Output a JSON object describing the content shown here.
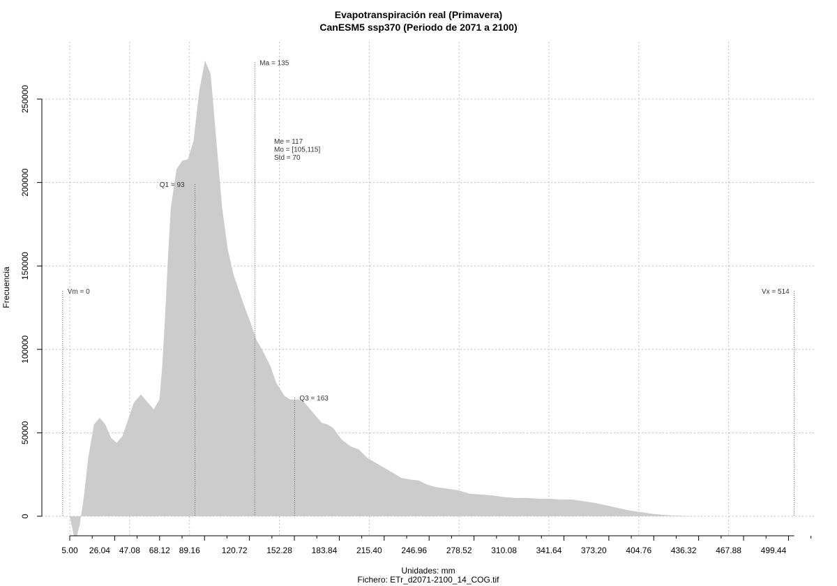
{
  "chart_data": {
    "type": "area",
    "title": "Evapotranspiración real (Primavera)",
    "subtitle": "CanESM5 ssp370 (Periodo de 2071 a 2100)",
    "xlabel": "Unidades: mm",
    "ylabel": "Frecuencia",
    "footer": "Fichero: ETr_d2071-2100_14_COG.tif",
    "xlim": [
      -5,
      520
    ],
    "ylim": [
      -10000,
      275000
    ],
    "grid": true,
    "x_tick_labels": [
      "5.00",
      "26.04",
      "47.08",
      "68.12",
      "89.16",
      "120.72",
      "152.28",
      "183.84",
      "215.40",
      "246.96",
      "278.52",
      "310.08",
      "341.64",
      "373.20",
      "404.76",
      "436.32",
      "467.88",
      "499.44"
    ],
    "x_tick_values": [
      5.0,
      26.04,
      47.08,
      68.12,
      89.16,
      120.72,
      152.28,
      183.84,
      215.4,
      246.96,
      278.52,
      310.08,
      341.64,
      373.2,
      404.76,
      436.32,
      467.88,
      499.44
    ],
    "y_ticks": [
      0,
      50000,
      100000,
      150000,
      200000,
      250000
    ],
    "y_tick_labels": [
      "0",
      "50000",
      "100000",
      "150000",
      "200000",
      "250000"
    ],
    "density_x": [
      5,
      8,
      10,
      12,
      15,
      18,
      22,
      26,
      30,
      34,
      38,
      42,
      46,
      50,
      55,
      60,
      64,
      68,
      70,
      72,
      74,
      76,
      80,
      84,
      88,
      92,
      96,
      100,
      104,
      108,
      112,
      116,
      120,
      124,
      128,
      132,
      136,
      140,
      146,
      150,
      156,
      160,
      166,
      170,
      176,
      182,
      186,
      190,
      196,
      202,
      208,
      214,
      220,
      226,
      232,
      238,
      244,
      250,
      256,
      262,
      270,
      278,
      286,
      294,
      302,
      310,
      318,
      326,
      334,
      342,
      350,
      358,
      366,
      374,
      382,
      390,
      398,
      406,
      414,
      422,
      430,
      440,
      450,
      470,
      490,
      514
    ],
    "density_y": [
      0,
      -12000,
      -12000,
      -5000,
      12000,
      35000,
      55000,
      59000,
      55000,
      47000,
      44000,
      48000,
      58000,
      68000,
      73000,
      68000,
      64000,
      70000,
      90000,
      120000,
      155000,
      185000,
      208000,
      213000,
      214000,
      225000,
      255000,
      273000,
      265000,
      225000,
      185000,
      160000,
      145000,
      135000,
      125000,
      116000,
      106000,
      100000,
      90000,
      80000,
      72000,
      70000,
      70000,
      68000,
      62000,
      56000,
      55000,
      53000,
      46000,
      42000,
      40000,
      35000,
      32000,
      29000,
      26000,
      23000,
      22000,
      21500,
      19000,
      17500,
      16500,
      15500,
      13500,
      13000,
      12500,
      11500,
      11000,
      11000,
      10500,
      10500,
      10000,
      10000,
      9000,
      8000,
      6500,
      5000,
      3500,
      2500,
      1500,
      800,
      400,
      150,
      50,
      0,
      0,
      0
    ],
    "markers": [
      {
        "label": "Vm = 0",
        "x": 0,
        "top": 135000
      },
      {
        "label": "Q1 = 93",
        "x": 93,
        "top": 199000
      },
      {
        "label": "Ma = 135",
        "x": 135,
        "top": 272000
      },
      {
        "label": "Q3 = 163",
        "x": 163,
        "top": 71000
      },
      {
        "label": "Vx = 514",
        "x": 514,
        "top": 135000
      }
    ],
    "stats": [
      "Me = 117",
      "Mo = [105,115]",
      "Std = 70"
    ],
    "fill_color": "#cccccc",
    "line_color": "#555555",
    "grid_color": "#bfbfbf"
  }
}
